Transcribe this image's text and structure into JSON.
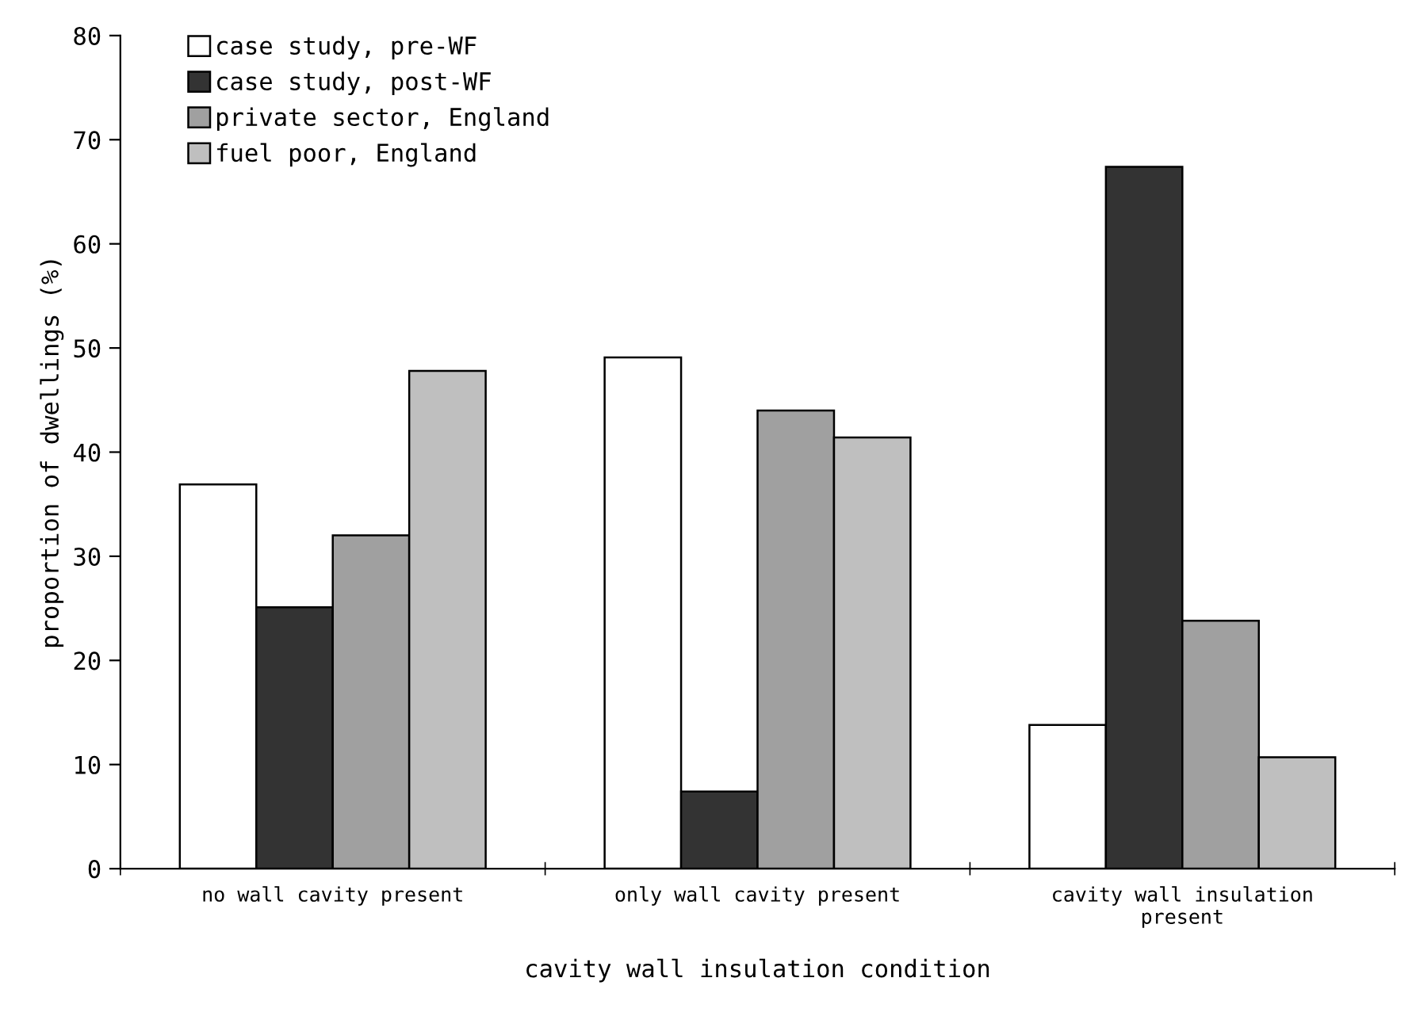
{
  "chart_data": {
    "type": "bar",
    "xlabel": "cavity wall insulation condition",
    "ylabel": "proportion of dwellings (%)",
    "categories": [
      "no wall cavity present",
      "only wall cavity present",
      "cavity wall insulation\npresent"
    ],
    "series": [
      {
        "name": "case study, pre-WF",
        "color": "#ffffff",
        "values": [
          36.9,
          49.1,
          13.8
        ]
      },
      {
        "name": "case study, post-WF",
        "color": "#333333",
        "values": [
          25.1,
          7.4,
          67.4
        ]
      },
      {
        "name": "private sector, England",
        "color": "#a0a0a0",
        "values": [
          32.0,
          44.0,
          23.8
        ]
      },
      {
        "name": "fuel poor, England",
        "color": "#bfbfbf",
        "values": [
          47.8,
          41.4,
          10.7
        ]
      }
    ],
    "ylim": [
      0,
      80
    ],
    "yticks": [
      0,
      10,
      20,
      30,
      40,
      50,
      60,
      70,
      80
    ],
    "grid": false,
    "legend": "top left"
  }
}
